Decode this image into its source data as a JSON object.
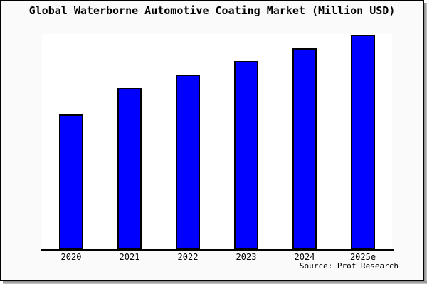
{
  "window": {
    "title": "Global Waterborne Automotive Coating Market (Million USD)"
  },
  "chart_data": {
    "type": "bar",
    "title": "Global Waterborne Automotive Coating Market (Million USD)",
    "categories": [
      "2020",
      "2021",
      "2022",
      "2023",
      "2024",
      "2025e"
    ],
    "values": [
      62.9,
      75.2,
      81.5,
      87.7,
      93.7,
      100
    ],
    "value_scale_note": "no y-axis, gridlines or data labels shown; values are relative bar heights with 2025e = 100",
    "xlabel": "",
    "ylabel": "",
    "ylim": [
      0,
      100.7
    ],
    "grid": false,
    "legend_position": "none",
    "source": "Source: Prof Research"
  },
  "colors": {
    "bar_fill": "#0000ff",
    "bar_border": "#000000",
    "frame_border": "#000000",
    "frame_shadow": "#999999",
    "margin_background": "#fafafa",
    "plot_background": "#ffffff",
    "axis_line": "#000000",
    "text": "#000000"
  }
}
